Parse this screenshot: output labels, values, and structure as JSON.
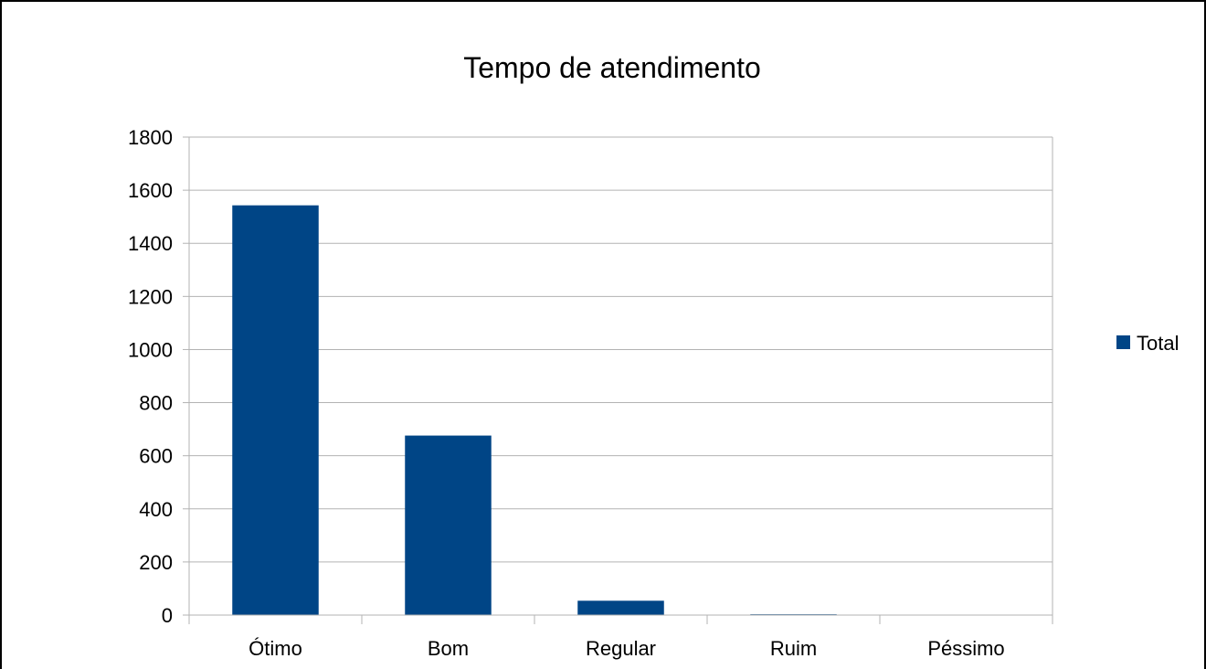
{
  "chart_data": {
    "type": "bar",
    "title": "Tempo de atendimento",
    "categories": [
      "Ótimo",
      "Bom",
      "Regular",
      "Ruim",
      "Péssimo"
    ],
    "series": [
      {
        "name": "Total",
        "values": [
          1543,
          676,
          54,
          3,
          0
        ],
        "color": "#004586"
      }
    ],
    "xlabel": "",
    "ylabel": "",
    "ylim": [
      0,
      1800
    ],
    "yticks": [
      "0",
      "200",
      "400",
      "600",
      "800",
      "1000",
      "1200",
      "1400",
      "1600",
      "1800"
    ],
    "grid": true,
    "legend": "right"
  }
}
